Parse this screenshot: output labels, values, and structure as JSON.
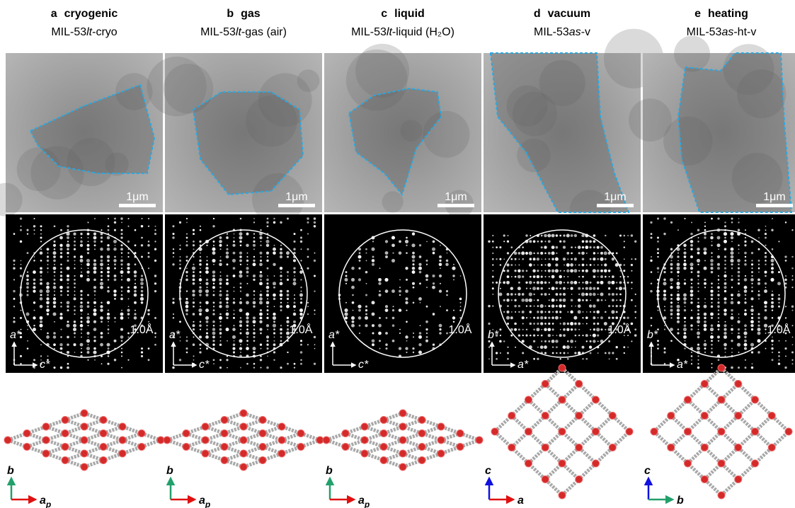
{
  "panels": [
    {
      "letter": "a",
      "condition": "cryogenic",
      "sample_prefix": "MIL-53",
      "sample_italic": "lt",
      "sample_suffix": "-cryo",
      "scale_bar": "1μm",
      "resolution": "1.0Å",
      "recip_vertical": "a*",
      "recip_horizontal": "c*",
      "real_vertical": "b",
      "real_horizontal": "a",
      "real_horizontal_sub": "p"
    },
    {
      "letter": "b",
      "condition": "gas",
      "sample_prefix": "MIL-53",
      "sample_italic": "lt",
      "sample_suffix": "-gas (air)",
      "scale_bar": "1μm",
      "resolution": "1.0Å",
      "recip_vertical": "a*",
      "recip_horizontal": "c*",
      "real_vertical": "b",
      "real_horizontal": "a",
      "real_horizontal_sub": "p"
    },
    {
      "letter": "c",
      "condition": "liquid",
      "sample_prefix": "MIL-53",
      "sample_italic": "lt",
      "sample_suffix": "-liquid (H₂O)",
      "scale_bar": "1μm",
      "resolution": "1.0Å",
      "recip_vertical": "a*",
      "recip_horizontal": "c*",
      "real_vertical": "b",
      "real_horizontal": "a",
      "real_horizontal_sub": "p"
    },
    {
      "letter": "d",
      "condition": "vacuum",
      "sample_prefix": "MIL-53",
      "sample_italic": "as",
      "sample_suffix": "-v",
      "scale_bar": "1μm",
      "resolution": "1.0Å",
      "recip_vertical": "b*",
      "recip_horizontal": "a*",
      "real_vertical": "c",
      "real_horizontal": "a"
    },
    {
      "letter": "e",
      "condition": "heating",
      "sample_prefix": "MIL-53",
      "sample_italic": "as",
      "sample_suffix": "-ht-v",
      "scale_bar": "1μm",
      "resolution": "1.0Å",
      "recip_vertical": "b*",
      "recip_horizontal": "a*",
      "real_vertical": "c",
      "real_horizontal": "b"
    }
  ]
}
